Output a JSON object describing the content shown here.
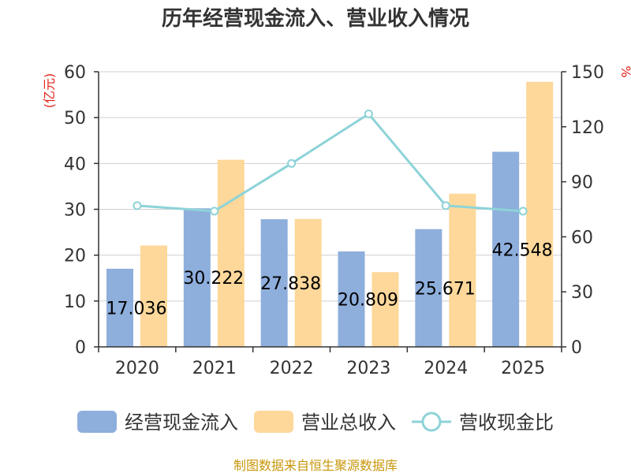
{
  "chart_data": {
    "type": "bar",
    "title": "历年经营现金流入、营业收入情况",
    "categories": [
      "2020",
      "2021",
      "2022",
      "2023",
      "2024",
      "2025"
    ],
    "y_left": {
      "unit": "(亿元)",
      "ylim": [
        0,
        60
      ],
      "ticks": [
        0,
        10,
        20,
        30,
        40,
        50,
        60
      ]
    },
    "y_right": {
      "unit": "%",
      "ylim": [
        0,
        150
      ],
      "ticks": [
        0,
        30,
        60,
        90,
        120,
        150
      ]
    },
    "series": [
      {
        "name": "经营现金流入",
        "kind": "bar",
        "axis": "left",
        "color": "#8eaedc",
        "values": [
          17.036,
          30.222,
          27.838,
          20.809,
          25.671,
          42.548
        ],
        "labels": [
          "17.036",
          "30.222",
          "27.838",
          "20.809",
          "25.671",
          "42.548"
        ]
      },
      {
        "name": "营业总收入",
        "kind": "bar",
        "axis": "left",
        "color": "#fdd89a",
        "values": [
          22.1,
          40.8,
          27.9,
          16.3,
          33.4,
          57.8
        ]
      },
      {
        "name": "营收现金比",
        "kind": "line",
        "axis": "right",
        "color": "#8dd3d8",
        "values": [
          77,
          74,
          100,
          127,
          77,
          74
        ]
      }
    ],
    "grid": true,
    "legend": "bottom"
  },
  "source": "制图数据来自恒生聚源数据库"
}
